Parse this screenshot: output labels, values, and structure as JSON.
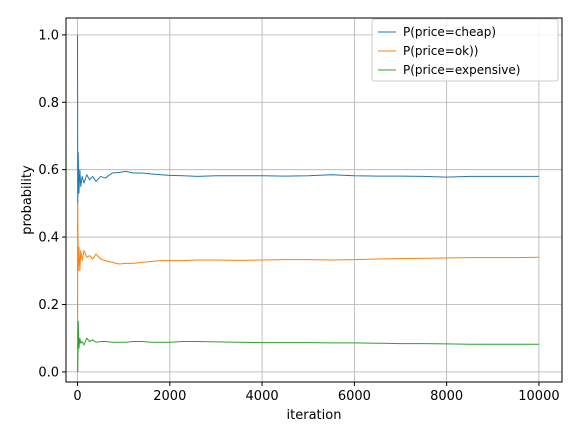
{
  "chart_data": {
    "type": "line",
    "title": "",
    "xlabel": "iteration",
    "ylabel": "probability",
    "xlim": [
      -250,
      10500
    ],
    "ylim": [
      -0.03,
      1.05
    ],
    "xticks": [
      0,
      2000,
      4000,
      6000,
      8000,
      10000
    ],
    "xtick_labels": [
      "0",
      "2000",
      "4000",
      "6000",
      "8000",
      "10000"
    ],
    "yticks": [
      0.0,
      0.2,
      0.4,
      0.6,
      0.8,
      1.0
    ],
    "ytick_labels": [
      "0.0",
      "0.2",
      "0.4",
      "0.6",
      "0.8",
      "1.0"
    ],
    "grid": true,
    "legend_position": "top-right",
    "series": [
      {
        "name": "P(price=cheap)",
        "color": "#1f77b4",
        "points": [
          [
            0,
            1.0
          ],
          [
            5,
            0.5
          ],
          [
            15,
            0.65
          ],
          [
            30,
            0.53
          ],
          [
            50,
            0.6
          ],
          [
            70,
            0.55
          ],
          [
            100,
            0.58
          ],
          [
            140,
            0.56
          ],
          [
            200,
            0.585
          ],
          [
            260,
            0.57
          ],
          [
            330,
            0.58
          ],
          [
            400,
            0.565
          ],
          [
            500,
            0.58
          ],
          [
            600,
            0.575
          ],
          [
            750,
            0.59
          ],
          [
            900,
            0.592
          ],
          [
            1050,
            0.595
          ],
          [
            1200,
            0.59
          ],
          [
            1400,
            0.59
          ],
          [
            1600,
            0.587
          ],
          [
            1800,
            0.585
          ],
          [
            2000,
            0.583
          ],
          [
            2300,
            0.582
          ],
          [
            2600,
            0.58
          ],
          [
            3000,
            0.582
          ],
          [
            3500,
            0.582
          ],
          [
            4000,
            0.582
          ],
          [
            4500,
            0.581
          ],
          [
            5000,
            0.582
          ],
          [
            5500,
            0.585
          ],
          [
            6000,
            0.582
          ],
          [
            6500,
            0.581
          ],
          [
            7000,
            0.581
          ],
          [
            7500,
            0.58
          ],
          [
            8000,
            0.578
          ],
          [
            8500,
            0.58
          ],
          [
            9000,
            0.58
          ],
          [
            9500,
            0.58
          ],
          [
            10000,
            0.58
          ]
        ]
      },
      {
        "name": "P(price=ok))",
        "color": "#ff7f0e",
        "points": [
          [
            0,
            0.0
          ],
          [
            5,
            0.5
          ],
          [
            15,
            0.3
          ],
          [
            30,
            0.37
          ],
          [
            50,
            0.3
          ],
          [
            70,
            0.36
          ],
          [
            100,
            0.33
          ],
          [
            140,
            0.36
          ],
          [
            200,
            0.34
          ],
          [
            260,
            0.345
          ],
          [
            330,
            0.335
          ],
          [
            400,
            0.35
          ],
          [
            500,
            0.335
          ],
          [
            600,
            0.33
          ],
          [
            750,
            0.325
          ],
          [
            900,
            0.32
          ],
          [
            1050,
            0.322
          ],
          [
            1200,
            0.322
          ],
          [
            1400,
            0.325
          ],
          [
            1600,
            0.328
          ],
          [
            1800,
            0.33
          ],
          [
            2000,
            0.33
          ],
          [
            2300,
            0.33
          ],
          [
            2600,
            0.332
          ],
          [
            3000,
            0.332
          ],
          [
            3500,
            0.331
          ],
          [
            4000,
            0.332
          ],
          [
            4500,
            0.333
          ],
          [
            5000,
            0.333
          ],
          [
            5500,
            0.332
          ],
          [
            6000,
            0.333
          ],
          [
            6500,
            0.335
          ],
          [
            7000,
            0.336
          ],
          [
            7500,
            0.337
          ],
          [
            8000,
            0.338
          ],
          [
            8500,
            0.339
          ],
          [
            9000,
            0.339
          ],
          [
            9500,
            0.339
          ],
          [
            10000,
            0.34
          ]
        ]
      },
      {
        "name": "P(price=expensive)",
        "color": "#2ca02c",
        "points": [
          [
            0,
            0.0
          ],
          [
            5,
            0.0
          ],
          [
            15,
            0.15
          ],
          [
            30,
            0.07
          ],
          [
            50,
            0.1
          ],
          [
            70,
            0.085
          ],
          [
            100,
            0.09
          ],
          [
            140,
            0.08
          ],
          [
            200,
            0.1
          ],
          [
            260,
            0.09
          ],
          [
            330,
            0.095
          ],
          [
            400,
            0.088
          ],
          [
            500,
            0.09
          ],
          [
            600,
            0.09
          ],
          [
            750,
            0.088
          ],
          [
            900,
            0.088
          ],
          [
            1050,
            0.088
          ],
          [
            1200,
            0.09
          ],
          [
            1400,
            0.09
          ],
          [
            1600,
            0.088
          ],
          [
            1800,
            0.088
          ],
          [
            2000,
            0.088
          ],
          [
            2300,
            0.09
          ],
          [
            2600,
            0.09
          ],
          [
            3000,
            0.089
          ],
          [
            3500,
            0.088
          ],
          [
            4000,
            0.087
          ],
          [
            4500,
            0.087
          ],
          [
            5000,
            0.087
          ],
          [
            5500,
            0.086
          ],
          [
            6000,
            0.086
          ],
          [
            6500,
            0.085
          ],
          [
            7000,
            0.084
          ],
          [
            7500,
            0.084
          ],
          [
            8000,
            0.083
          ],
          [
            8500,
            0.082
          ],
          [
            9000,
            0.082
          ],
          [
            9500,
            0.082
          ],
          [
            10000,
            0.082
          ]
        ]
      }
    ]
  }
}
